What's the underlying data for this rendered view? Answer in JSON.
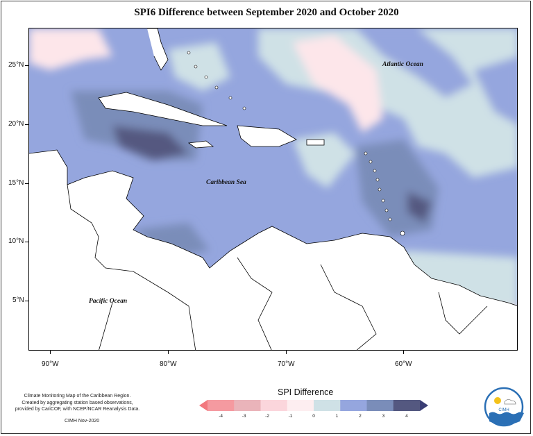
{
  "title": "SPI6 Difference between September 2020 and October 2020",
  "map": {
    "lat_labels": [
      "25°N",
      "20°N",
      "15°N",
      "10°N",
      "5°N"
    ],
    "lon_labels": [
      "90°W",
      "80°W",
      "70°W",
      "60°W"
    ],
    "places": {
      "atlantic": "Atlantic Ocean",
      "caribbean": "Caribbean Sea",
      "pacific": "Pacific Ocean"
    },
    "colors": {
      "land": "#ffffff",
      "border": "#000000",
      "pos1": "#cfe1e6",
      "pos2": "#95a6de",
      "pos3": "#7a8db9",
      "pos4": "#545880",
      "neg1": "#fde6ea",
      "neg2": "#fbcdd3"
    }
  },
  "legend": {
    "title": "SPI Difference",
    "ticks": [
      "-4",
      "-3",
      "-2",
      "-1",
      "0",
      "1",
      "2",
      "3",
      "4"
    ],
    "colors": [
      "#f2787e",
      "#f59aa0",
      "#eab4ba",
      "#fbd6dc",
      "#fdeef0",
      "#cfe1e6",
      "#95a6de",
      "#7a8db9",
      "#545880",
      "#3a3d74"
    ]
  },
  "credit": {
    "line1": "Climate Monitoring Map of the Caribbean Region.",
    "line2": "Created by aggregating station based observations,",
    "line3": "provided by CariCOF, with NCEP/NCAR Reanalysis Data.",
    "date": "CIMH Nov-2020"
  },
  "logo": {
    "text": "CIMH"
  }
}
